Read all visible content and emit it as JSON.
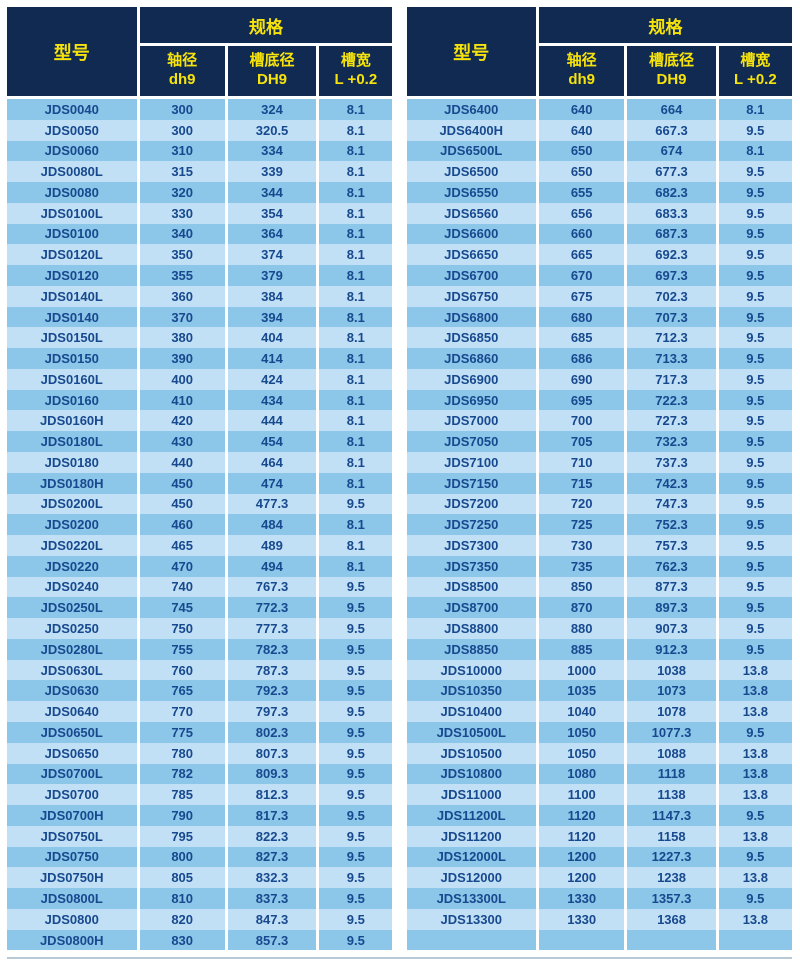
{
  "colors": {
    "header_bg": "#102a52",
    "header_text": "#f7e30c",
    "row_dark": "#8cc6e8",
    "row_light": "#c2e0f5",
    "cell_text": "#17498f",
    "page_bg": "#ffffff"
  },
  "header": {
    "model_label": "型号",
    "spec_label": "规格",
    "col_shaft_cn": "轴径",
    "col_shaft_en": "dh9",
    "col_groove_dia_cn": "槽底径",
    "col_groove_dia_en": "DH9",
    "col_groove_width_cn": "槽宽",
    "col_groove_width_en": "L +0.2"
  },
  "left_table": {
    "rows": [
      [
        "JDS0040",
        "300",
        "324",
        "8.1"
      ],
      [
        "JDS0050",
        "300",
        "320.5",
        "8.1"
      ],
      [
        "JDS0060",
        "310",
        "334",
        "8.1"
      ],
      [
        "JDS0080L",
        "315",
        "339",
        "8.1"
      ],
      [
        "JDS0080",
        "320",
        "344",
        "8.1"
      ],
      [
        "JDS0100L",
        "330",
        "354",
        "8.1"
      ],
      [
        "JDS0100",
        "340",
        "364",
        "8.1"
      ],
      [
        "JDS0120L",
        "350",
        "374",
        "8.1"
      ],
      [
        "JDS0120",
        "355",
        "379",
        "8.1"
      ],
      [
        "JDS0140L",
        "360",
        "384",
        "8.1"
      ],
      [
        "JDS0140",
        "370",
        "394",
        "8.1"
      ],
      [
        "JDS0150L",
        "380",
        "404",
        "8.1"
      ],
      [
        "JDS0150",
        "390",
        "414",
        "8.1"
      ],
      [
        "JDS0160L",
        "400",
        "424",
        "8.1"
      ],
      [
        "JDS0160",
        "410",
        "434",
        "8.1"
      ],
      [
        "JDS0160H",
        "420",
        "444",
        "8.1"
      ],
      [
        "JDS0180L",
        "430",
        "454",
        "8.1"
      ],
      [
        "JDS0180",
        "440",
        "464",
        "8.1"
      ],
      [
        "JDS0180H",
        "450",
        "474",
        "8.1"
      ],
      [
        "JDS0200L",
        "450",
        "477.3",
        "9.5"
      ],
      [
        "JDS0200",
        "460",
        "484",
        "8.1"
      ],
      [
        "JDS0220L",
        "465",
        "489",
        "8.1"
      ],
      [
        "JDS0220",
        "470",
        "494",
        "8.1"
      ],
      [
        "JDS0240",
        "740",
        "767.3",
        "9.5"
      ],
      [
        "JDS0250L",
        "745",
        "772.3",
        "9.5"
      ],
      [
        "JDS0250",
        "750",
        "777.3",
        "9.5"
      ],
      [
        "JDS0280L",
        "755",
        "782.3",
        "9.5"
      ],
      [
        "JDS0630L",
        "760",
        "787.3",
        "9.5"
      ],
      [
        "JDS0630",
        "765",
        "792.3",
        "9.5"
      ],
      [
        "JDS0640",
        "770",
        "797.3",
        "9.5"
      ],
      [
        "JDS0650L",
        "775",
        "802.3",
        "9.5"
      ],
      [
        "JDS0650",
        "780",
        "807.3",
        "9.5"
      ],
      [
        "JDS0700L",
        "782",
        "809.3",
        "9.5"
      ],
      [
        "JDS0700",
        "785",
        "812.3",
        "9.5"
      ],
      [
        "JDS0700H",
        "790",
        "817.3",
        "9.5"
      ],
      [
        "JDS0750L",
        "795",
        "822.3",
        "9.5"
      ],
      [
        "JDS0750",
        "800",
        "827.3",
        "9.5"
      ],
      [
        "JDS0750H",
        "805",
        "832.3",
        "9.5"
      ],
      [
        "JDS0800L",
        "810",
        "837.3",
        "9.5"
      ],
      [
        "JDS0800",
        "820",
        "847.3",
        "9.5"
      ],
      [
        "JDS0800H",
        "830",
        "857.3",
        "9.5"
      ]
    ]
  },
  "right_table": {
    "rows": [
      [
        "JDS6400",
        "640",
        "664",
        "8.1"
      ],
      [
        "JDS6400H",
        "640",
        "667.3",
        "9.5"
      ],
      [
        "JDS6500L",
        "650",
        "674",
        "8.1"
      ],
      [
        "JDS6500",
        "650",
        "677.3",
        "9.5"
      ],
      [
        "JDS6550",
        "655",
        "682.3",
        "9.5"
      ],
      [
        "JDS6560",
        "656",
        "683.3",
        "9.5"
      ],
      [
        "JDS6600",
        "660",
        "687.3",
        "9.5"
      ],
      [
        "JDS6650",
        "665",
        "692.3",
        "9.5"
      ],
      [
        "JDS6700",
        "670",
        "697.3",
        "9.5"
      ],
      [
        "JDS6750",
        "675",
        "702.3",
        "9.5"
      ],
      [
        "JDS6800",
        "680",
        "707.3",
        "9.5"
      ],
      [
        "JDS6850",
        "685",
        "712.3",
        "9.5"
      ],
      [
        "JDS6860",
        "686",
        "713.3",
        "9.5"
      ],
      [
        "JDS6900",
        "690",
        "717.3",
        "9.5"
      ],
      [
        "JDS6950",
        "695",
        "722.3",
        "9.5"
      ],
      [
        "JDS7000",
        "700",
        "727.3",
        "9.5"
      ],
      [
        "JDS7050",
        "705",
        "732.3",
        "9.5"
      ],
      [
        "JDS7100",
        "710",
        "737.3",
        "9.5"
      ],
      [
        "JDS7150",
        "715",
        "742.3",
        "9.5"
      ],
      [
        "JDS7200",
        "720",
        "747.3",
        "9.5"
      ],
      [
        "JDS7250",
        "725",
        "752.3",
        "9.5"
      ],
      [
        "JDS7300",
        "730",
        "757.3",
        "9.5"
      ],
      [
        "JDS7350",
        "735",
        "762.3",
        "9.5"
      ],
      [
        "JDS8500",
        "850",
        "877.3",
        "9.5"
      ],
      [
        "JDS8700",
        "870",
        "897.3",
        "9.5"
      ],
      [
        "JDS8800",
        "880",
        "907.3",
        "9.5"
      ],
      [
        "JDS8850",
        "885",
        "912.3",
        "9.5"
      ],
      [
        "JDS10000",
        "1000",
        "1038",
        "13.8"
      ],
      [
        "JDS10350",
        "1035",
        "1073",
        "13.8"
      ],
      [
        "JDS10400",
        "1040",
        "1078",
        "13.8"
      ],
      [
        "JDS10500L",
        "1050",
        "1077.3",
        "9.5"
      ],
      [
        "JDS10500",
        "1050",
        "1088",
        "13.8"
      ],
      [
        "JDS10800",
        "1080",
        "1118",
        "13.8"
      ],
      [
        "JDS11000",
        "1100",
        "1138",
        "13.8"
      ],
      [
        "JDS11200L",
        "1120",
        "1147.3",
        "9.5"
      ],
      [
        "JDS11200",
        "1120",
        "1158",
        "13.8"
      ],
      [
        "JDS12000L",
        "1200",
        "1227.3",
        "9.5"
      ],
      [
        "JDS12000",
        "1200",
        "1238",
        "13.8"
      ],
      [
        "JDS13300L",
        "1330",
        "1357.3",
        "9.5"
      ],
      [
        "JDS13300",
        "1330",
        "1368",
        "13.8"
      ],
      [
        "",
        "",
        "",
        ""
      ]
    ]
  }
}
